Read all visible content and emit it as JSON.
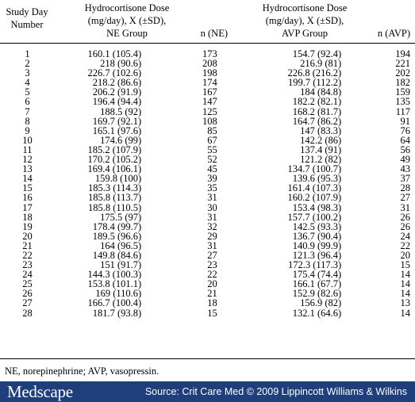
{
  "header": {
    "col1": [
      "Study Day",
      "Number"
    ],
    "col2": [
      "Hydrocortisone Dose",
      "(mg/day), X (±SD),",
      "NE Group"
    ],
    "col3": "n (NE)",
    "col4": [
      "Hydrocortisone Dose",
      "(mg/day), X (±SD),",
      "AVP Group"
    ],
    "col5": "n (AVP)"
  },
  "rows": [
    [
      "1",
      "160.1 (105.4)",
      "173",
      "154.7 (92.4)",
      "194"
    ],
    [
      "2",
      "218 (90.6)",
      "208",
      "216.9 (81)",
      "221"
    ],
    [
      "3",
      "226.7 (102.6)",
      "198",
      "226.8 (216.2)",
      "202"
    ],
    [
      "4",
      "218.2 (86.6)",
      "174",
      "199.7 (112.2)",
      "182"
    ],
    [
      "5",
      "206.2 (91.9)",
      "167",
      "184 (84.8)",
      "159"
    ],
    [
      "6",
      "196.4 (94.4)",
      "147",
      "182.2 (82.1)",
      "135"
    ],
    [
      "7",
      "188.5 (92)",
      "125",
      "168.2 (81.7)",
      "117"
    ],
    [
      "8",
      "169.7 (92.1)",
      "108",
      "164.7 (86.2)",
      "91"
    ],
    [
      "9",
      "165.1 (97.6)",
      "85",
      "147 (83.3)",
      "76"
    ],
    [
      "10",
      "174.6 (99)",
      "67",
      "142.2 (86)",
      "64"
    ],
    [
      "11",
      "185.2 (107.9)",
      "55",
      "137.4 (91)",
      "56"
    ],
    [
      "12",
      "170.2 (105.2)",
      "52",
      "121.2 (82)",
      "49"
    ],
    [
      "13",
      "169.4 (106.1)",
      "45",
      "134.7 (100.7)",
      "43"
    ],
    [
      "14",
      "159.8 (100)",
      "39",
      "139.6 (95.3)",
      "37"
    ],
    [
      "15",
      "185.3 (114.3)",
      "35",
      "161.4 (107.3)",
      "28"
    ],
    [
      "16",
      "185.8 (113.7)",
      "31",
      "160.2 (107.9)",
      "27"
    ],
    [
      "17",
      "185.8 (110.5)",
      "30",
      "153.4 (98.3)",
      "31"
    ],
    [
      "18",
      "175.5 (97)",
      "31",
      "157.7 (100.2)",
      "26"
    ],
    [
      "19",
      "178.4 (99.7)",
      "32",
      "142.5 (93.3)",
      "26"
    ],
    [
      "20",
      "189.5 (96.6)",
      "29",
      "136.7 (90.4)",
      "24"
    ],
    [
      "21",
      "164 (96.5)",
      "31",
      "140.9 (99.9)",
      "22"
    ],
    [
      "22",
      "149.8 (84.6)",
      "27",
      "121.3 (96.4)",
      "20"
    ],
    [
      "23",
      "151 (91.7)",
      "23",
      "172.3 (117.3)",
      "15"
    ],
    [
      "24",
      "144.3 (100.3)",
      "22",
      "175.4 (74.4)",
      "14"
    ],
    [
      "25",
      "153.8 (101.1)",
      "20",
      "166.1 (67.7)",
      "14"
    ],
    [
      "26",
      "169 (110.6)",
      "21",
      "152.9 (82.6)",
      "14"
    ],
    [
      "27",
      "166.7 (100.4)",
      "18",
      "156.9 (82)",
      "13"
    ],
    [
      "28",
      "181.7 (93.8)",
      "15",
      "132.1 (64.6)",
      "14"
    ]
  ],
  "footnote": "NE, norepinephrine; AVP, vasopressin.",
  "brand": {
    "logo": "Medscape",
    "source": "Source: Crit Care Med © 2009 Lippincott Williams & Wilkins",
    "bar_color": "#1f3e7c"
  }
}
